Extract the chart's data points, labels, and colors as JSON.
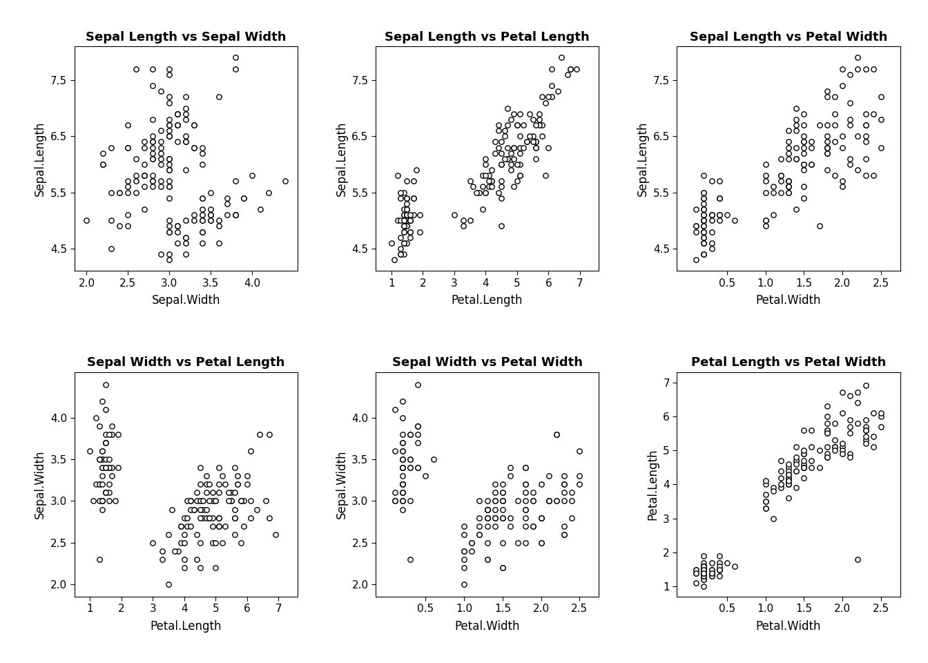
{
  "title_fontsize": 13,
  "label_fontsize": 12,
  "tick_fontsize": 11,
  "marker": "o",
  "marker_size": 28,
  "marker_facecolor": "white",
  "marker_edgecolor": "black",
  "marker_linewidth": 1.0,
  "background_color": "white",
  "plots": [
    {
      "title": "Sepal Length vs Sepal Width",
      "xlabel": "Sepal.Width",
      "ylabel": "Sepal.Length",
      "xlim": [
        1.85,
        4.55
      ],
      "ylim": [
        4.1,
        8.1
      ],
      "xticks": [
        2.0,
        2.5,
        3.0,
        3.5,
        4.0
      ],
      "yticks": [
        4.5,
        5.5,
        6.5,
        7.5
      ]
    },
    {
      "title": "Sepal Length vs Petal Length",
      "xlabel": "Petal.Length",
      "ylabel": "Sepal.Length",
      "xlim": [
        0.5,
        7.6
      ],
      "ylim": [
        4.1,
        8.1
      ],
      "xticks": [
        1,
        2,
        3,
        4,
        5,
        6,
        7
      ],
      "yticks": [
        4.5,
        5.5,
        6.5,
        7.5
      ]
    },
    {
      "title": "Sepal Length vs Petal Width",
      "xlabel": "Petal.Width",
      "ylabel": "Sepal.Length",
      "xlim": [
        -0.15,
        2.75
      ],
      "ylim": [
        4.1,
        8.1
      ],
      "xticks": [
        0.5,
        1.0,
        1.5,
        2.0,
        2.5
      ],
      "yticks": [
        4.5,
        5.5,
        6.5,
        7.5
      ]
    },
    {
      "title": "Sepal Width vs Petal Length",
      "xlabel": "Petal.Length",
      "ylabel": "Sepal.Width",
      "xlim": [
        0.5,
        7.6
      ],
      "ylim": [
        1.85,
        4.55
      ],
      "xticks": [
        1,
        2,
        3,
        4,
        5,
        6,
        7
      ],
      "yticks": [
        2.0,
        2.5,
        3.0,
        3.5,
        4.0
      ]
    },
    {
      "title": "Sepal Width vs Petal Width",
      "xlabel": "Petal.Width",
      "ylabel": "Sepal.Width",
      "xlim": [
        -0.15,
        2.75
      ],
      "ylim": [
        1.85,
        4.55
      ],
      "xticks": [
        0.5,
        1.0,
        1.5,
        2.0,
        2.5
      ],
      "yticks": [
        2.0,
        2.5,
        3.0,
        3.5,
        4.0
      ]
    },
    {
      "title": "Petal Length vs Petal Width",
      "xlabel": "Petal.Width",
      "ylabel": "Petal.Length",
      "xlim": [
        -0.15,
        2.75
      ],
      "ylim": [
        0.7,
        7.3
      ],
      "xticks": [
        0.5,
        1.0,
        1.5,
        2.0,
        2.5
      ],
      "yticks": [
        1,
        2,
        3,
        4,
        5,
        6,
        7
      ]
    }
  ],
  "sepal_length": [
    5.1,
    4.9,
    4.7,
    4.6,
    5.0,
    5.4,
    4.6,
    5.0,
    4.4,
    4.9,
    5.4,
    4.8,
    4.8,
    4.3,
    5.8,
    5.7,
    5.4,
    5.1,
    5.7,
    5.1,
    5.4,
    5.1,
    4.6,
    5.1,
    4.8,
    5.0,
    5.0,
    5.2,
    5.2,
    4.7,
    4.8,
    5.4,
    5.2,
    5.5,
    4.9,
    5.0,
    5.5,
    4.9,
    4.4,
    5.1,
    5.0,
    4.5,
    4.4,
    5.0,
    5.1,
    4.8,
    5.1,
    4.6,
    5.3,
    5.0,
    7.0,
    6.4,
    6.9,
    5.5,
    6.5,
    5.7,
    6.3,
    4.9,
    6.6,
    5.2,
    5.0,
    5.9,
    6.0,
    6.1,
    5.6,
    6.7,
    5.6,
    5.8,
    6.2,
    5.6,
    5.9,
    6.1,
    6.3,
    6.1,
    6.4,
    6.6,
    6.8,
    6.7,
    6.0,
    5.7,
    5.5,
    5.5,
    5.8,
    6.0,
    5.4,
    6.0,
    6.7,
    6.3,
    5.6,
    5.5,
    5.5,
    6.1,
    5.8,
    5.0,
    5.6,
    5.7,
    5.7,
    6.2,
    5.1,
    5.7,
    6.3,
    5.8,
    7.1,
    6.3,
    6.5,
    7.6,
    4.9,
    7.3,
    6.7,
    7.2,
    6.5,
    6.4,
    6.8,
    5.7,
    5.8,
    6.4,
    6.5,
    7.7,
    7.7,
    6.0,
    6.9,
    5.6,
    7.7,
    6.3,
    6.7,
    7.2,
    6.2,
    6.1,
    6.4,
    7.2,
    7.4,
    7.9,
    6.4,
    6.3,
    6.1,
    7.7,
    6.3,
    6.4,
    6.0,
    6.9,
    6.7,
    6.9,
    5.8,
    6.8,
    6.7,
    6.7,
    6.3,
    6.5,
    6.2,
    5.9
  ],
  "sepal_width": [
    3.5,
    3.0,
    3.2,
    3.1,
    3.6,
    3.9,
    3.4,
    3.4,
    2.9,
    3.1,
    3.7,
    3.4,
    3.0,
    3.0,
    4.0,
    4.4,
    3.9,
    3.5,
    3.8,
    3.8,
    3.4,
    3.7,
    3.6,
    3.3,
    3.4,
    3.0,
    3.4,
    3.5,
    3.4,
    3.2,
    3.1,
    3.4,
    4.1,
    4.2,
    3.1,
    3.2,
    3.5,
    3.6,
    3.0,
    3.4,
    3.5,
    2.3,
    3.2,
    3.5,
    3.8,
    3.0,
    3.8,
    3.2,
    3.7,
    3.3,
    3.2,
    3.2,
    3.1,
    2.3,
    2.8,
    2.8,
    3.3,
    2.4,
    2.9,
    2.7,
    2.0,
    3.0,
    2.2,
    2.9,
    2.9,
    3.1,
    3.0,
    2.7,
    2.2,
    2.5,
    3.2,
    2.8,
    2.5,
    2.8,
    2.9,
    3.0,
    2.8,
    3.0,
    2.9,
    2.6,
    2.4,
    2.4,
    2.7,
    2.7,
    3.0,
    3.4,
    3.1,
    2.3,
    3.0,
    2.5,
    2.6,
    3.0,
    2.6,
    2.3,
    2.7,
    3.0,
    2.9,
    2.9,
    2.5,
    2.8,
    3.3,
    2.7,
    3.0,
    2.9,
    3.0,
    3.0,
    2.5,
    2.9,
    2.5,
    3.6,
    3.2,
    2.7,
    3.0,
    2.5,
    2.8,
    3.2,
    3.0,
    3.8,
    2.6,
    2.2,
    3.2,
    2.8,
    2.8,
    2.7,
    3.3,
    3.2,
    2.8,
    3.0,
    2.8,
    3.0,
    2.8,
    3.8,
    2.8,
    2.8,
    2.6,
    3.0,
    3.4,
    3.1,
    3.0,
    3.1,
    3.1,
    3.1,
    2.7,
    3.2,
    3.3,
    3.0,
    2.5,
    3.0,
    3.4,
    3.0
  ],
  "petal_length": [
    1.4,
    1.4,
    1.3,
    1.5,
    1.4,
    1.7,
    1.4,
    1.5,
    1.4,
    1.5,
    1.5,
    1.6,
    1.4,
    1.1,
    1.2,
    1.5,
    1.3,
    1.4,
    1.7,
    1.5,
    1.7,
    1.5,
    1.0,
    1.7,
    1.9,
    1.6,
    1.6,
    1.5,
    1.4,
    1.6,
    1.6,
    1.5,
    1.5,
    1.4,
    1.5,
    1.2,
    1.3,
    1.4,
    1.3,
    1.5,
    1.3,
    1.3,
    1.3,
    1.6,
    1.9,
    1.4,
    1.6,
    1.4,
    1.5,
    1.4,
    4.7,
    4.5,
    4.9,
    4.0,
    4.6,
    4.5,
    4.7,
    3.3,
    4.6,
    3.9,
    3.5,
    4.2,
    4.0,
    4.7,
    3.6,
    4.4,
    4.5,
    4.1,
    4.5,
    3.9,
    4.8,
    4.0,
    4.9,
    4.7,
    4.3,
    4.4,
    4.8,
    5.0,
    4.5,
    3.5,
    3.8,
    3.7,
    3.9,
    5.1,
    4.5,
    4.5,
    4.7,
    4.4,
    4.1,
    4.0,
    4.4,
    4.6,
    4.0,
    3.3,
    4.2,
    4.2,
    4.2,
    4.3,
    3.0,
    4.1,
    6.0,
    5.1,
    5.9,
    5.6,
    5.8,
    6.6,
    4.5,
    6.3,
    5.8,
    6.1,
    5.1,
    5.3,
    5.5,
    5.0,
    5.1,
    5.3,
    5.5,
    6.7,
    6.9,
    5.0,
    5.7,
    4.9,
    6.7,
    4.9,
    5.7,
    6.0,
    4.8,
    4.9,
    5.6,
    5.8,
    6.1,
    6.4,
    5.6,
    5.1,
    5.6,
    6.1,
    5.6,
    5.5,
    4.8,
    5.4,
    5.6,
    5.1,
    5.9,
    5.7,
    5.2,
    5.0,
    5.2,
    5.4,
    5.1,
    1.8
  ],
  "petal_width": [
    0.2,
    0.2,
    0.2,
    0.2,
    0.2,
    0.4,
    0.3,
    0.2,
    0.2,
    0.1,
    0.2,
    0.2,
    0.1,
    0.1,
    0.2,
    0.4,
    0.4,
    0.3,
    0.3,
    0.3,
    0.2,
    0.4,
    0.2,
    0.5,
    0.2,
    0.2,
    0.4,
    0.2,
    0.2,
    0.2,
    0.2,
    0.4,
    0.1,
    0.2,
    0.2,
    0.2,
    0.2,
    0.1,
    0.2,
    0.3,
    0.3,
    0.3,
    0.2,
    0.6,
    0.4,
    0.3,
    0.2,
    0.2,
    0.2,
    0.2,
    1.4,
    1.5,
    1.5,
    1.3,
    1.5,
    1.3,
    1.6,
    1.0,
    1.3,
    1.4,
    1.0,
    1.5,
    1.0,
    1.4,
    1.3,
    1.4,
    1.5,
    1.0,
    1.5,
    1.1,
    1.8,
    1.3,
    1.5,
    1.2,
    1.3,
    1.4,
    1.4,
    1.7,
    1.5,
    1.0,
    1.1,
    1.0,
    1.2,
    1.6,
    1.5,
    1.6,
    1.5,
    1.3,
    1.3,
    1.3,
    1.2,
    1.4,
    1.2,
    1.0,
    1.3,
    1.2,
    1.3,
    1.3,
    1.1,
    1.3,
    2.5,
    1.9,
    2.1,
    1.8,
    2.2,
    2.1,
    1.7,
    1.8,
    1.8,
    2.5,
    2.0,
    1.9,
    2.1,
    2.0,
    2.4,
    2.3,
    1.8,
    2.2,
    2.3,
    1.5,
    2.3,
    2.0,
    2.0,
    1.8,
    2.1,
    1.8,
    1.8,
    2.1,
    1.6,
    1.9,
    2.0,
    2.2,
    1.5,
    1.4,
    2.3,
    2.4,
    1.8,
    1.8,
    2.1,
    2.4,
    2.3,
    1.9,
    2.3,
    2.5,
    2.3,
    1.9,
    2.0,
    2.3,
    1.8,
    2.2
  ]
}
